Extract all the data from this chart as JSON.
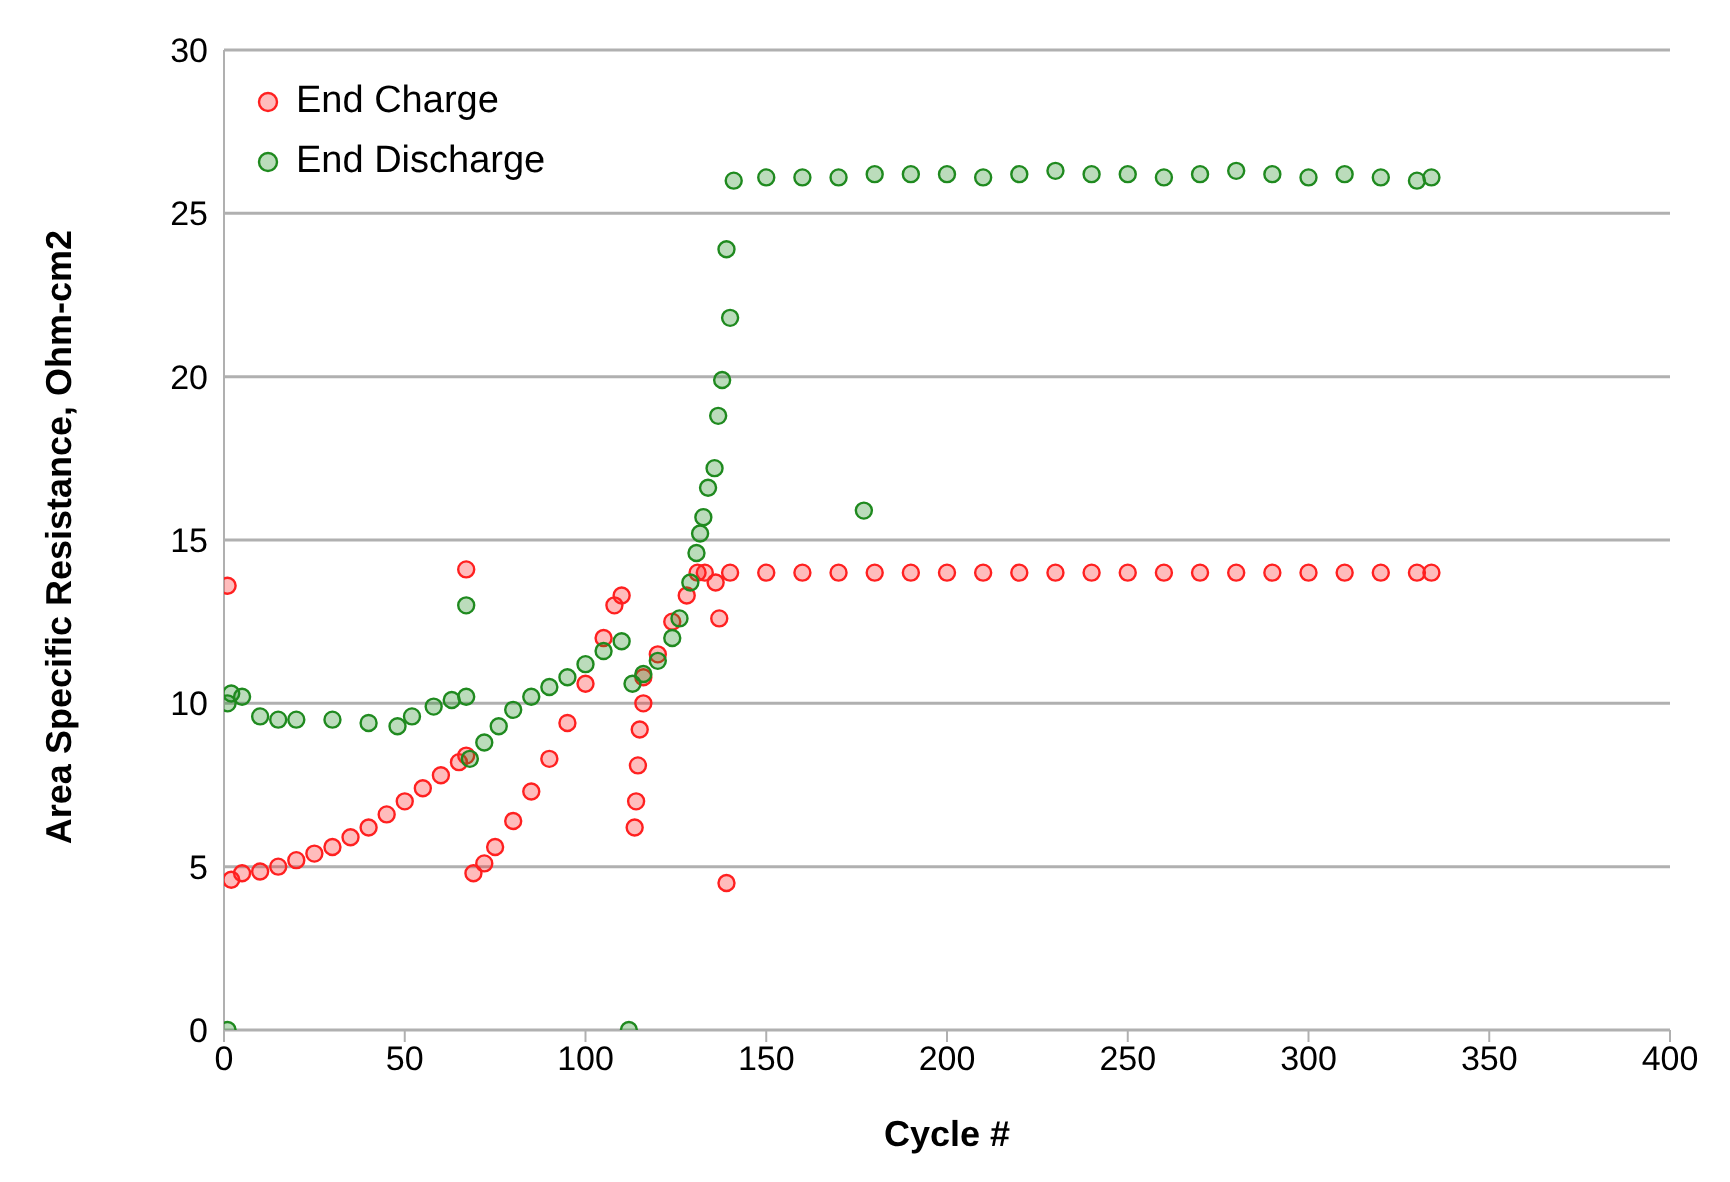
{
  "chart_data": {
    "type": "scatter",
    "xlabel": "Cycle #",
    "ylabel": "Area Specific Resistance, Ohm-cm2",
    "xlim": [
      0,
      400
    ],
    "xticks": [
      0,
      50,
      100,
      150,
      200,
      250,
      300,
      350,
      400
    ],
    "ylim": [
      0,
      30
    ],
    "yticks": [
      0,
      5,
      10,
      15,
      20,
      25,
      30
    ],
    "grid": "y",
    "legend": "top left",
    "marker": "circle",
    "series": [
      {
        "name": "End Charge",
        "color": "#ff2020",
        "x": [
          1,
          2,
          5,
          10,
          15,
          20,
          25,
          30,
          35,
          40,
          45,
          50,
          55,
          60,
          65,
          67,
          67,
          69,
          72,
          75,
          80,
          85,
          90,
          95,
          100,
          105,
          108,
          110,
          113.6,
          114,
          114.5,
          115,
          116,
          116,
          120,
          124,
          128,
          131,
          136,
          137,
          139,
          133,
          140,
          150,
          160,
          170,
          180,
          190,
          200,
          210,
          220,
          230,
          240,
          250,
          260,
          270,
          280,
          290,
          300,
          310,
          320,
          330,
          334
        ],
        "values": [
          13.6,
          4.6,
          4.8,
          4.85,
          5.0,
          5.2,
          5.4,
          5.6,
          5.9,
          6.2,
          6.6,
          7.0,
          7.4,
          7.8,
          8.2,
          8.4,
          14.1,
          4.8,
          5.1,
          5.6,
          6.4,
          7.3,
          8.3,
          9.4,
          10.6,
          12.0,
          13.0,
          13.3,
          6.2,
          7.0,
          8.1,
          9.2,
          10.0,
          10.8,
          11.5,
          12.5,
          13.3,
          14.0,
          13.7,
          12.6,
          4.5,
          14.0,
          14.0,
          14.0,
          14.0,
          14.0,
          14.0,
          14.0,
          14.0,
          14.0,
          14.0,
          14.0,
          14.0,
          14.0,
          14.0,
          14.0,
          14.0,
          14.0,
          14.0,
          14.0,
          14.0,
          14.0,
          14.0
        ]
      },
      {
        "name": "End Discharge",
        "color": "#1f8a1f",
        "x": [
          1,
          1,
          2,
          5,
          10,
          15,
          20,
          30,
          40,
          48,
          52,
          58,
          63,
          67,
          67,
          68,
          72,
          76,
          80,
          85,
          90,
          95,
          100,
          105,
          110,
          112,
          113,
          116,
          120,
          124,
          126,
          129,
          130.7,
          131.7,
          132.6,
          133.9,
          135.7,
          136.7,
          137.8,
          139,
          140,
          141,
          150,
          160,
          170,
          180,
          190,
          200,
          210,
          220,
          230,
          240,
          250,
          260,
          270,
          280,
          290,
          300,
          310,
          320,
          330,
          334,
          177
        ],
        "values": [
          0,
          10.0,
          10.3,
          10.2,
          9.6,
          9.5,
          9.5,
          9.5,
          9.4,
          9.3,
          9.6,
          9.9,
          10.1,
          10.2,
          13.0,
          8.3,
          8.8,
          9.3,
          9.8,
          10.2,
          10.5,
          10.8,
          11.2,
          11.6,
          11.9,
          0,
          10.6,
          10.9,
          11.3,
          12.0,
          12.6,
          13.7,
          14.6,
          15.2,
          15.7,
          16.6,
          17.2,
          18.8,
          19.9,
          23.9,
          21.8,
          26.0,
          26.1,
          26.1,
          26.1,
          26.2,
          26.2,
          26.2,
          26.1,
          26.2,
          26.3,
          26.2,
          26.2,
          26.1,
          26.2,
          26.3,
          26.2,
          26.1,
          26.2,
          26.1,
          26.0,
          26.1,
          15.9
        ]
      }
    ]
  }
}
